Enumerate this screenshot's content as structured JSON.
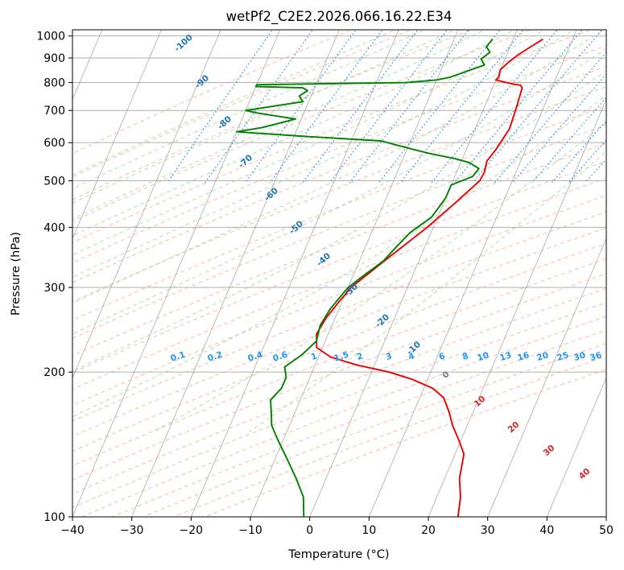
{
  "chart_data": {
    "type": "line",
    "title": "wetPf2_C2E2.2026.066.16.22.E34",
    "xlabel": "Temperature (°C)",
    "ylabel": "Pressure (hPa)",
    "xlim": [
      -40,
      50
    ],
    "ylim": [
      1030,
      100
    ],
    "y_scale": "log",
    "x_ticks": [
      "−40",
      "−30",
      "−20",
      "−10",
      "0",
      "10",
      "20",
      "30",
      "40",
      "50"
    ],
    "y_ticks": [
      "100",
      "200",
      "300",
      "400",
      "500",
      "600",
      "700",
      "800",
      "900",
      "1000"
    ],
    "grid": true,
    "colors": {
      "temperature": "#ee0000",
      "dewpoint": "#008000",
      "dry_adiabat": "#f4a582",
      "moist_adiabat": "#8fce8f",
      "mixing_ratio": "#1e88e5",
      "isotherm": "#888888"
    },
    "series": [
      {
        "role": "temperature",
        "points": [
          [
            5.0,
            985
          ],
          [
            3.5,
            950
          ],
          [
            1.8,
            910
          ],
          [
            0.8,
            880
          ],
          [
            0.0,
            850
          ],
          [
            0.3,
            820
          ],
          [
            0.0,
            810
          ],
          [
            3.0,
            795
          ],
          [
            4.5,
            790
          ],
          [
            5.0,
            780
          ],
          [
            5.5,
            700
          ],
          [
            5.8,
            640
          ],
          [
            5.0,
            580
          ],
          [
            4.3,
            550
          ],
          [
            4.7,
            520
          ],
          [
            4.5,
            500
          ],
          [
            2.0,
            450
          ],
          [
            -1.0,
            400
          ],
          [
            -5.0,
            350
          ],
          [
            -9.5,
            300
          ],
          [
            -10.5,
            280
          ],
          [
            -11.5,
            260
          ],
          [
            -12.0,
            240
          ],
          [
            -11.0,
            225
          ],
          [
            -8.0,
            215
          ],
          [
            -3.0,
            207
          ],
          [
            3.0,
            200
          ],
          [
            7.5,
            193
          ],
          [
            11.5,
            185
          ],
          [
            14.0,
            177
          ],
          [
            16.0,
            165
          ],
          [
            17.5,
            155
          ],
          [
            19.5,
            145
          ],
          [
            21.5,
            135
          ],
          [
            22.5,
            120
          ],
          [
            24.0,
            110
          ],
          [
            25.0,
            100
          ]
        ]
      },
      {
        "role": "dewpoint",
        "points": [
          [
            -3.5,
            985
          ],
          [
            -4.0,
            950
          ],
          [
            -3.0,
            925
          ],
          [
            -4.0,
            895
          ],
          [
            -3.0,
            870
          ],
          [
            -6.0,
            840
          ],
          [
            -8.0,
            820
          ],
          [
            -10.0,
            810
          ],
          [
            -15.0,
            800
          ],
          [
            -40.0,
            792
          ],
          [
            -40.0,
            785
          ],
          [
            -32.0,
            780
          ],
          [
            -31.0,
            770
          ],
          [
            -32.0,
            750
          ],
          [
            -31.0,
            730
          ],
          [
            -40.0,
            700
          ],
          [
            -38.0,
            692
          ],
          [
            -31.0,
            672
          ],
          [
            -36.0,
            645
          ],
          [
            -40.0,
            632
          ],
          [
            -28.0,
            618
          ],
          [
            -15.0,
            605
          ],
          [
            -10.0,
            585
          ],
          [
            -6.0,
            570
          ],
          [
            -1.0,
            555
          ],
          [
            1.5,
            545
          ],
          [
            3.5,
            530
          ],
          [
            3.0,
            510
          ],
          [
            0.0,
            490
          ],
          [
            0.0,
            460
          ],
          [
            -1.0,
            420
          ],
          [
            -3.5,
            390
          ],
          [
            -5.0,
            360
          ],
          [
            -6.0,
            340
          ],
          [
            -8.0,
            320
          ],
          [
            -10.0,
            300
          ],
          [
            -10.5,
            290
          ],
          [
            -11.5,
            270
          ],
          [
            -12.0,
            250
          ],
          [
            -11.5,
            232
          ],
          [
            -13.0,
            217
          ],
          [
            -15.0,
            205
          ],
          [
            -14.0,
            195
          ],
          [
            -14.0,
            185
          ],
          [
            -15.0,
            175
          ],
          [
            -14.0,
            165
          ],
          [
            -13.0,
            155
          ],
          [
            -11.0,
            145
          ],
          [
            -7.5,
            130
          ],
          [
            -5.0,
            120
          ],
          [
            -2.5,
            110
          ],
          [
            -1.0,
            100
          ]
        ]
      }
    ],
    "dry_adiabat_labels": [
      "-100",
      "-90",
      "-80",
      "-70",
      "-60",
      "-50",
      "-40",
      "-30",
      "-20",
      "-10",
      "0",
      "10",
      "20",
      "30",
      "40"
    ],
    "mixing_ratio_labels": [
      "0.1",
      "0.2",
      "0.4",
      "0.6",
      "1",
      "1.5",
      "2",
      "3",
      "4",
      "6",
      "8",
      "10",
      "13",
      "16",
      "20",
      "25",
      "30",
      "36"
    ],
    "mixing_ratio_values": [
      0.1,
      0.2,
      0.4,
      0.6,
      1,
      1.5,
      2,
      3,
      4,
      6,
      8,
      10,
      13,
      16,
      20,
      25,
      30,
      36
    ]
  }
}
